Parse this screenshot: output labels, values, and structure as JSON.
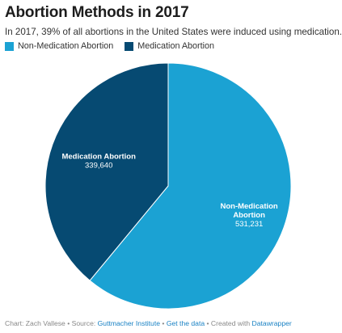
{
  "title": "Abortion Methods in 2017",
  "subtitle": "In 2017, 39% of all abortions in the United States were induced using medication.",
  "legend": [
    {
      "name": "Non-Medication Abortion",
      "color": "#1ba2d3"
    },
    {
      "name": "Medication Abortion",
      "color": "#064a72"
    }
  ],
  "chart_data": {
    "type": "pie",
    "title": "Abortion Methods in 2017",
    "slices": [
      {
        "label_lines": [
          "Non-Medication",
          "Abortion"
        ],
        "value": 531231,
        "value_text": "531,231",
        "color": "#1ba2d3"
      },
      {
        "label_lines": [
          "Medication Abortion"
        ],
        "value": 339640,
        "value_text": "339,640",
        "color": "#064a72"
      }
    ],
    "legend_position": "top-left"
  },
  "footer": {
    "prefix": "Chart: Zach Vallese • Source: ",
    "source": "Guttmacher Institute",
    "sep1": " • ",
    "get_data": "Get the data",
    "sep2": " • Created with ",
    "tool": "Datawrapper"
  }
}
